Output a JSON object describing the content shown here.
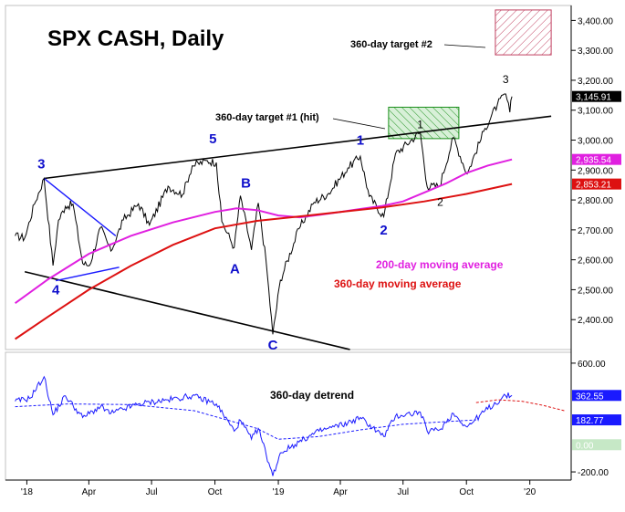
{
  "chart_data": [
    {
      "type": "line",
      "title": "SPX CASH, Daily",
      "ylim": [
        2300,
        3450
      ],
      "grid": false,
      "y_ticks": [
        "3,400.00",
        "3,300.00",
        "3,200.00",
        "3,100.00",
        "3,000.00",
        "2,900.00",
        "2,800.00",
        "2,700.00",
        "2,600.00",
        "2,500.00",
        "2,400.00"
      ],
      "x_ticks": [
        "'18",
        "Apr",
        "Jul",
        "Oct",
        "'19",
        "Apr",
        "Jul",
        "Oct",
        "'20"
      ],
      "series": [
        {
          "name": "SPX CASH",
          "color": "#000000",
          "points": [
            [
              "2017-12-15",
              2680
            ],
            [
              "2017-12-29",
              2673
            ],
            [
              "2018-01-12",
              2786
            ],
            [
              "2018-01-26",
              2872
            ],
            [
              "2018-02-08",
              2581
            ],
            [
              "2018-02-16",
              2732
            ],
            [
              "2018-02-26",
              2779
            ],
            [
              "2018-03-09",
              2786
            ],
            [
              "2018-03-23",
              2588
            ],
            [
              "2018-04-02",
              2581
            ],
            [
              "2018-04-18",
              2708
            ],
            [
              "2018-05-03",
              2629
            ],
            [
              "2018-05-21",
              2733
            ],
            [
              "2018-06-12",
              2787
            ],
            [
              "2018-06-28",
              2716
            ],
            [
              "2018-07-25",
              2846
            ],
            [
              "2018-08-15",
              2818
            ],
            [
              "2018-08-29",
              2914
            ],
            [
              "2018-09-20",
              2931
            ],
            [
              "2018-10-03",
              2925
            ],
            [
              "2018-10-11",
              2728
            ],
            [
              "2018-10-29",
              2641
            ],
            [
              "2018-11-07",
              2814
            ],
            [
              "2018-11-23",
              2633
            ],
            [
              "2018-12-03",
              2790
            ],
            [
              "2018-12-14",
              2600
            ],
            [
              "2018-12-24",
              2351
            ],
            [
              "2019-01-04",
              2532
            ],
            [
              "2019-01-31",
              2704
            ],
            [
              "2019-02-22",
              2792
            ],
            [
              "2019-03-15",
              2822
            ],
            [
              "2019-04-12",
              2907
            ],
            [
              "2019-04-30",
              2946
            ],
            [
              "2019-05-13",
              2812
            ],
            [
              "2019-06-03",
              2744
            ],
            [
              "2019-06-20",
              2954
            ],
            [
              "2019-07-26",
              3026
            ],
            [
              "2019-08-05",
              2844
            ],
            [
              "2019-08-23",
              2847
            ],
            [
              "2019-09-12",
              3009
            ],
            [
              "2019-10-02",
              2887
            ],
            [
              "2019-10-28",
              3039
            ],
            [
              "2019-11-15",
              3120
            ],
            [
              "2019-11-27",
              3154
            ],
            [
              "2019-12-03",
              3093
            ],
            [
              "2019-12-06",
              3146
            ]
          ]
        },
        {
          "name": "200-day moving average",
          "color": "#e020e0",
          "points": [
            [
              "2017-12-15",
              2455
            ],
            [
              "2018-02-01",
              2535
            ],
            [
              "2018-04-01",
              2620
            ],
            [
              "2018-06-01",
              2680
            ],
            [
              "2018-08-01",
              2725
            ],
            [
              "2018-10-01",
              2760
            ],
            [
              "2018-11-01",
              2772
            ],
            [
              "2018-12-01",
              2766
            ],
            [
              "2019-01-01",
              2748
            ],
            [
              "2019-02-01",
              2742
            ],
            [
              "2019-03-01",
              2750
            ],
            [
              "2019-04-01",
              2760
            ],
            [
              "2019-05-01",
              2770
            ],
            [
              "2019-06-01",
              2780
            ],
            [
              "2019-07-01",
              2795
            ],
            [
              "2019-08-01",
              2825
            ],
            [
              "2019-09-01",
              2855
            ],
            [
              "2019-10-01",
              2890
            ],
            [
              "2019-11-01",
              2915
            ],
            [
              "2019-12-06",
              2935.54
            ]
          ]
        },
        {
          "name": "360-day moving average",
          "color": "#dd1111",
          "points": [
            [
              "2017-12-15",
              2335
            ],
            [
              "2018-02-01",
              2410
            ],
            [
              "2018-04-01",
              2500
            ],
            [
              "2018-06-01",
              2580
            ],
            [
              "2018-08-01",
              2650
            ],
            [
              "2018-10-01",
              2705
            ],
            [
              "2018-12-01",
              2730
            ],
            [
              "2019-02-01",
              2745
            ],
            [
              "2019-04-01",
              2760
            ],
            [
              "2019-06-01",
              2775
            ],
            [
              "2019-08-01",
              2795
            ],
            [
              "2019-10-01",
              2820
            ],
            [
              "2019-12-06",
              2853.21
            ]
          ]
        }
      ],
      "value_tags": [
        {
          "value": 3145.91,
          "label": "3,145.91",
          "bg": "#000000",
          "fg": "#ffffff"
        },
        {
          "value": 2935.54,
          "label": "2,935.54",
          "bg": "#e020e0",
          "fg": "#ffffff"
        },
        {
          "value": 2853.21,
          "label": "2,853.21",
          "bg": "#dd1111",
          "fg": "#ffffff"
        }
      ],
      "trendlines": [
        {
          "color": "#000000",
          "from": [
            "2018-01-26",
            2872
          ],
          "to": [
            "2020-02-01",
            3080
          ]
        },
        {
          "color": "#000000",
          "from": [
            "2017-12-29",
            2560
          ],
          "to": [
            "2019-04-15",
            2300
          ]
        },
        {
          "color": "#1a1aff",
          "from": [
            "2018-01-26",
            2872
          ],
          "to": [
            "2018-05-10",
            2680
          ]
        },
        {
          "color": "#1a1aff",
          "from": [
            "2018-02-12",
            2530
          ],
          "to": [
            "2018-05-15",
            2575
          ]
        }
      ],
      "target_zones": [
        {
          "label": "360-day target #1 (hit)",
          "color": "#1a8f1a",
          "from_x": "2019-06-10",
          "to_x": "2019-09-20",
          "ymin": 3005,
          "ymax": 3110
        },
        {
          "label": "360-day target #2",
          "color": "#c04060",
          "from_x": "2019-11-12",
          "to_x": "2020-02-01",
          "ymin": 3285,
          "ymax": 3435
        }
      ],
      "wave_labels": [
        {
          "text": "3",
          "color": "#1010cc",
          "x": "2018-01-22",
          "y": 2905
        },
        {
          "text": "4",
          "color": "#1010cc",
          "x": "2018-02-12",
          "y": 2485
        },
        {
          "text": "5",
          "color": "#1010cc",
          "x": "2018-09-28",
          "y": 2990
        },
        {
          "text": "A",
          "color": "#1010cc",
          "x": "2018-10-30",
          "y": 2555
        },
        {
          "text": "B",
          "color": "#1010cc",
          "x": "2018-11-15",
          "y": 2842
        },
        {
          "text": "C",
          "color": "#1010cc",
          "x": "2018-12-24",
          "y": 2300
        },
        {
          "text": "1",
          "color": "#1010cc",
          "x": "2019-04-30",
          "y": 2985
        },
        {
          "text": "2",
          "color": "#1010cc",
          "x": "2019-06-03",
          "y": 2685
        },
        {
          "text": "1",
          "color": "#000000",
          "x": "2019-07-26",
          "y": 3040
        },
        {
          "text": "2",
          "color": "#000000",
          "x": "2019-08-24",
          "y": 2780
        },
        {
          "text": "3",
          "color": "#000000",
          "x": "2019-11-27",
          "y": 3190
        }
      ],
      "annotations": [
        "360-day target #1 (hit)",
        "360-day target #2",
        "200-day moving average",
        "360-day moving average"
      ]
    },
    {
      "type": "line",
      "title": "360-day detrend",
      "ylim": [
        -260,
        680
      ],
      "grid": false,
      "y_ticks": [
        "600.00",
        "-200.00"
      ],
      "x_ticks": [
        "'18",
        "Apr",
        "Jul",
        "Oct",
        "'19",
        "Apr",
        "Jul",
        "Oct",
        "'20"
      ],
      "value_tags": [
        {
          "value": 362.55,
          "label": "362.55",
          "bg": "#1a1aff",
          "fg": "#ffffff"
        },
        {
          "value": 182.77,
          "label": "182.77",
          "bg": "#1a1aff",
          "fg": "#ffffff"
        },
        {
          "value": 0.0,
          "label": "0.00",
          "bg": "#c6e8c6",
          "fg": "#ffffff"
        }
      ],
      "series": [
        {
          "name": "360-day detrend",
          "color": "#1a1aff",
          "points": [
            [
              "2017-12-15",
              320
            ],
            [
              "2018-01-05",
              340
            ],
            [
              "2018-01-26",
              500
            ],
            [
              "2018-02-08",
              220
            ],
            [
              "2018-02-26",
              360
            ],
            [
              "2018-03-23",
              200
            ],
            [
              "2018-04-18",
              280
            ],
            [
              "2018-05-03",
              230
            ],
            [
              "2018-06-12",
              300
            ],
            [
              "2018-07-25",
              330
            ],
            [
              "2018-08-29",
              360
            ],
            [
              "2018-10-03",
              300
            ],
            [
              "2018-10-29",
              100
            ],
            [
              "2018-11-07",
              180
            ],
            [
              "2018-11-23",
              40
            ],
            [
              "2018-12-03",
              120
            ],
            [
              "2018-12-24",
              -230
            ],
            [
              "2019-01-04",
              -60
            ],
            [
              "2019-01-31",
              20
            ],
            [
              "2019-03-01",
              100
            ],
            [
              "2019-04-12",
              160
            ],
            [
              "2019-04-30",
              200
            ],
            [
              "2019-06-03",
              60
            ],
            [
              "2019-06-20",
              210
            ],
            [
              "2019-07-26",
              240
            ],
            [
              "2019-08-05",
              100
            ],
            [
              "2019-08-23",
              110
            ],
            [
              "2019-09-12",
              230
            ],
            [
              "2019-10-02",
              130
            ],
            [
              "2019-10-28",
              250
            ],
            [
              "2019-11-27",
              360
            ],
            [
              "2019-12-06",
              362.55
            ]
          ]
        },
        {
          "color": "#1a1aff",
          "dashed": true,
          "points": [
            [
              "2017-12-15",
              280
            ],
            [
              "2018-03-01",
              300
            ],
            [
              "2018-06-01",
              295
            ],
            [
              "2018-09-01",
              250
            ],
            [
              "2018-12-01",
              120
            ],
            [
              "2019-01-01",
              40
            ],
            [
              "2019-03-01",
              60
            ],
            [
              "2019-05-01",
              110
            ],
            [
              "2019-07-01",
              150
            ],
            [
              "2019-09-01",
              170
            ],
            [
              "2019-10-15",
              182.77
            ]
          ]
        },
        {
          "color": "#dd1111",
          "dashed": true,
          "points": [
            [
              "2019-10-15",
              310
            ],
            [
              "2019-11-15",
              330
            ],
            [
              "2019-12-20",
              320
            ],
            [
              "2020-01-20",
              290
            ],
            [
              "2020-02-20",
              250
            ]
          ]
        }
      ]
    }
  ]
}
